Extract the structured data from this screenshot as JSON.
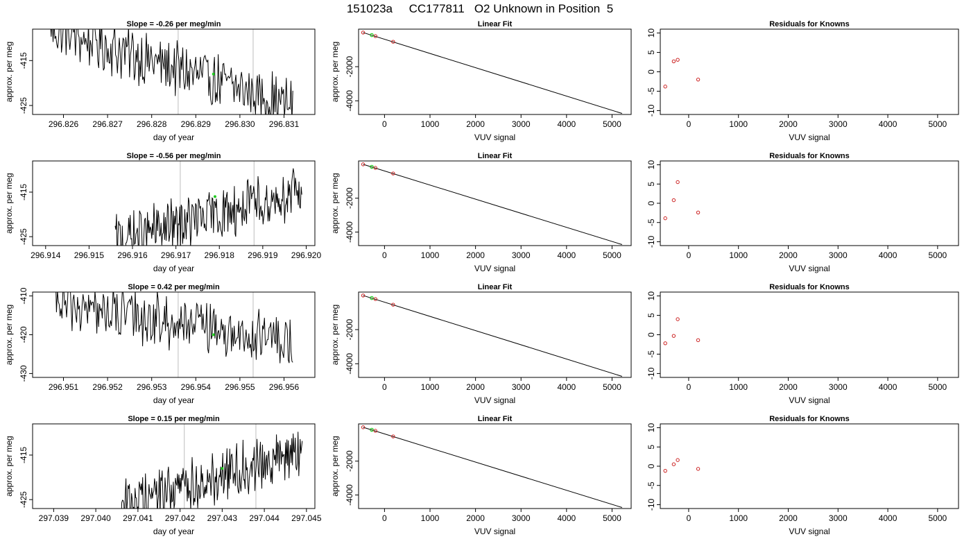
{
  "figure": {
    "title": "151023a     CC177811   O2 Unknown in Position  5"
  },
  "colors": {
    "trace": "#000000",
    "marker_vline": "#c8c8c8",
    "unknown_point": "#22cc22",
    "known_point": "#cc2222",
    "fit_line": "#000000"
  },
  "chart_data": [
    {
      "id": "slope-1",
      "type": "line",
      "title": "Slope =  -0.26  per meg/min",
      "xlabel": "day of year",
      "ylabel": "approx. per meg",
      "xlim": [
        296.8253,
        296.8317
      ],
      "ylim": [
        -427,
        -408
      ],
      "x_ticks": [
        "296.826",
        "296.827",
        "296.828",
        "296.829",
        "296.830",
        "296.831"
      ],
      "y_ticks": [
        "-415",
        "-425"
      ],
      "trace_start": 296.8257,
      "trace_end": 296.8312,
      "trace_from": -408,
      "trace_to": -425,
      "vlines": [
        296.8286,
        296.8303
      ],
      "unknown_point": {
        "x": 296.8294,
        "y": -418
      }
    },
    {
      "id": "fit-1",
      "type": "scatter",
      "title": "Linear Fit",
      "xlabel": "VUV signal",
      "ylabel": "approx. per meg",
      "xlim": [
        -570,
        5420
      ],
      "ylim": [
        -4800,
        200
      ],
      "x_ticks": [
        "0",
        "1000",
        "2000",
        "3000",
        "4000",
        "5000"
      ],
      "y_ticks": [
        "-2000",
        "-4000"
      ],
      "fit_line": [
        [
          -470,
          0
        ],
        [
          5220,
          -4740
        ]
      ],
      "known_points": [
        [
          -470,
          0
        ],
        [
          -200,
          -210
        ],
        [
          190,
          -540
        ]
      ],
      "unknown_points": [
        [
          -280,
          -150
        ]
      ]
    },
    {
      "id": "resid-1",
      "type": "scatter",
      "title": "Residuals for Knowns",
      "xlabel": "VUV signal",
      "ylabel": "",
      "xlim": [
        -570,
        5420
      ],
      "ylim": [
        -11,
        11
      ],
      "x_ticks": [
        "0",
        "1000",
        "2000",
        "3000",
        "4000",
        "5000"
      ],
      "y_ticks": [
        "10",
        "5",
        "0",
        "-5",
        "-10"
      ],
      "known_points": [
        [
          -470,
          -3.8
        ],
        [
          -300,
          2.7
        ],
        [
          -220,
          3.1
        ],
        [
          190,
          -2.0
        ]
      ]
    },
    {
      "id": "slope-2",
      "type": "line",
      "title": "Slope =  -0.56  per meg/min",
      "xlabel": "day of year",
      "ylabel": "approx. per meg",
      "xlim": [
        296.9137,
        296.9202
      ],
      "ylim": [
        -427,
        -408
      ],
      "x_ticks": [
        "296.914",
        "296.915",
        "296.916",
        "296.917",
        "296.918",
        "296.919",
        "296.920"
      ],
      "y_ticks": [
        "-415",
        "-425"
      ],
      "trace_start": 296.9156,
      "trace_end": 296.9199,
      "trace_from": -426,
      "trace_to": -415,
      "vlines": [
        296.9171,
        296.9188
      ],
      "unknown_point": {
        "x": 296.9179,
        "y": -416
      }
    },
    {
      "id": "fit-2",
      "type": "scatter",
      "title": "Linear Fit",
      "xlabel": "VUV signal",
      "ylabel": "approx. per meg",
      "xlim": [
        -570,
        5420
      ],
      "ylim": [
        -4800,
        200
      ],
      "x_ticks": [
        "0",
        "1000",
        "2000",
        "3000",
        "4000",
        "5000"
      ],
      "y_ticks": [
        "-2000",
        "-4000"
      ],
      "fit_line": [
        [
          -470,
          0
        ],
        [
          5220,
          -4740
        ]
      ],
      "known_points": [
        [
          -470,
          0
        ],
        [
          -200,
          -210
        ],
        [
          190,
          -540
        ]
      ],
      "unknown_points": [
        [
          -280,
          -150
        ]
      ]
    },
    {
      "id": "resid-2",
      "type": "scatter",
      "title": "Residuals for Knowns",
      "xlabel": "VUV signal",
      "ylabel": "",
      "xlim": [
        -570,
        5420
      ],
      "ylim": [
        -11,
        11
      ],
      "x_ticks": [
        "0",
        "1000",
        "2000",
        "3000",
        "4000",
        "5000"
      ],
      "y_ticks": [
        "10",
        "5",
        "0",
        "-5",
        "-10"
      ],
      "known_points": [
        [
          -470,
          -3.9
        ],
        [
          -300,
          0.8
        ],
        [
          -220,
          5.5
        ],
        [
          190,
          -2.4
        ]
      ]
    },
    {
      "id": "slope-3",
      "type": "line",
      "title": "Slope =  0.42  per meg/min",
      "xlabel": "day of year",
      "ylabel": "approx. per meg",
      "xlim": [
        296.9503,
        296.9567
      ],
      "ylim": [
        -431,
        -409
      ],
      "x_ticks": [
        "296.951",
        "296.952",
        "296.953",
        "296.954",
        "296.955",
        "296.956"
      ],
      "y_ticks": [
        "-410",
        "-420",
        "-430"
      ],
      "trace_start": 296.9508,
      "trace_end": 296.9562,
      "trace_from": -412,
      "trace_to": -422,
      "vlines": [
        296.9536,
        296.9553
      ],
      "unknown_point": {
        "x": 296.9544,
        "y": -420
      }
    },
    {
      "id": "fit-3",
      "type": "scatter",
      "title": "Linear Fit",
      "xlabel": "VUV signal",
      "ylabel": "approx. per meg",
      "xlim": [
        -570,
        5420
      ],
      "ylim": [
        -4800,
        200
      ],
      "x_ticks": [
        "0",
        "1000",
        "2000",
        "3000",
        "4000",
        "5000"
      ],
      "y_ticks": [
        "-2000",
        "-4000"
      ],
      "fit_line": [
        [
          -470,
          0
        ],
        [
          5220,
          -4740
        ]
      ],
      "known_points": [
        [
          -470,
          0
        ],
        [
          -200,
          -210
        ],
        [
          190,
          -540
        ]
      ],
      "unknown_points": [
        [
          -280,
          -150
        ]
      ]
    },
    {
      "id": "resid-3",
      "type": "scatter",
      "title": "Residuals for Knowns",
      "xlabel": "VUV signal",
      "ylabel": "",
      "xlim": [
        -570,
        5420
      ],
      "ylim": [
        -11,
        11
      ],
      "x_ticks": [
        "0",
        "1000",
        "2000",
        "3000",
        "4000",
        "5000"
      ],
      "y_ticks": [
        "10",
        "5",
        "0",
        "-5",
        "-10"
      ],
      "known_points": [
        [
          -470,
          -2.2
        ],
        [
          -300,
          -0.3
        ],
        [
          -220,
          4.0
        ],
        [
          190,
          -1.4
        ]
      ]
    },
    {
      "id": "slope-4",
      "type": "line",
      "title": "Slope =  0.15  per meg/min",
      "xlabel": "day of year",
      "ylabel": "approx. per meg",
      "xlim": [
        297.0385,
        297.0452
      ],
      "ylim": [
        -427,
        -408
      ],
      "x_ticks": [
        "297.039",
        "297.040",
        "297.041",
        "297.042",
        "297.043",
        "297.044",
        "297.045"
      ],
      "y_ticks": [
        "-415",
        "-425"
      ],
      "trace_start": 297.0406,
      "trace_end": 297.0449,
      "trace_from": -426,
      "trace_to": -414,
      "vlines": [
        297.0421,
        297.0438
      ],
      "unknown_point": {
        "x": 297.043,
        "y": -418
      }
    },
    {
      "id": "fit-4",
      "type": "scatter",
      "title": "Linear Fit",
      "xlabel": "VUV signal",
      "ylabel": "approx. per meg",
      "xlim": [
        -570,
        5420
      ],
      "ylim": [
        -4800,
        200
      ],
      "x_ticks": [
        "0",
        "1000",
        "2000",
        "3000",
        "4000",
        "5000"
      ],
      "y_ticks": [
        "-2000",
        "-4000"
      ],
      "fit_line": [
        [
          -470,
          0
        ],
        [
          5220,
          -4740
        ]
      ],
      "known_points": [
        [
          -470,
          0
        ],
        [
          -200,
          -210
        ],
        [
          190,
          -540
        ]
      ],
      "unknown_points": [
        [
          -280,
          -150
        ]
      ]
    },
    {
      "id": "resid-4",
      "type": "scatter",
      "title": "Residuals for Knowns",
      "xlabel": "VUV signal",
      "ylabel": "",
      "xlim": [
        -570,
        5420
      ],
      "ylim": [
        -11,
        11
      ],
      "x_ticks": [
        "0",
        "1000",
        "2000",
        "3000",
        "4000",
        "5000"
      ],
      "y_ticks": [
        "10",
        "5",
        "0",
        "-5",
        "-10"
      ],
      "known_points": [
        [
          -470,
          -1.2
        ],
        [
          -300,
          0.5
        ],
        [
          -220,
          1.6
        ],
        [
          190,
          -0.7
        ]
      ]
    }
  ]
}
